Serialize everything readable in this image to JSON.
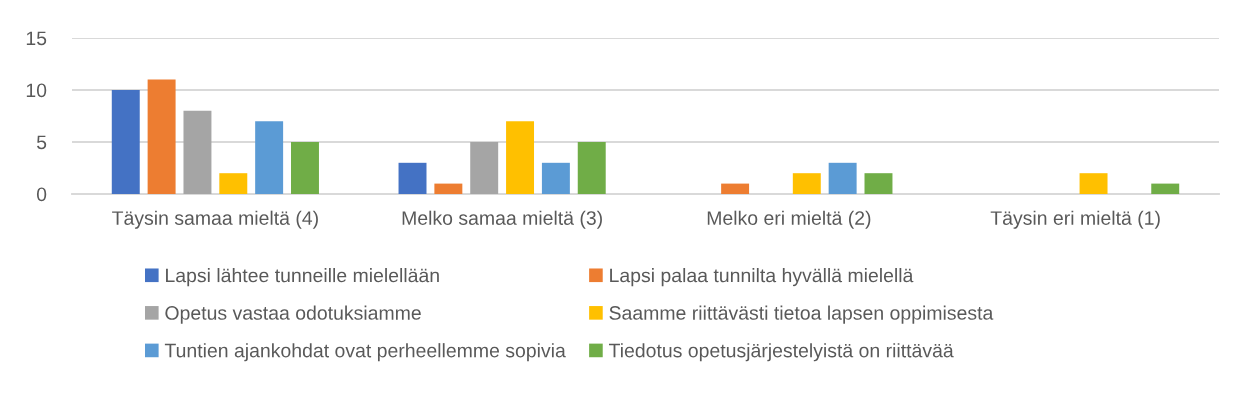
{
  "chart_data": {
    "type": "bar",
    "categories": [
      "Täysin samaa mieltä (4)",
      "Melko samaa mieltä (3)",
      "Melko eri mieltä (2)",
      "Täysin eri mieltä (1)"
    ],
    "series": [
      {
        "name": "Lapsi lähtee tunneille mielellään",
        "color": "#4472c4",
        "values": [
          10,
          3,
          null,
          null
        ]
      },
      {
        "name": "Lapsi palaa tunnilta hyvällä mielellä",
        "color": "#ed7d31",
        "values": [
          11,
          1,
          1,
          null
        ]
      },
      {
        "name": "Opetus vastaa odotuksiamme",
        "color": "#a5a5a5",
        "values": [
          8,
          5,
          null,
          null
        ]
      },
      {
        "name": "Saamme riittävästi tietoa lapsen oppimisesta",
        "color": "#ffc000",
        "values": [
          2,
          7,
          2,
          2
        ]
      },
      {
        "name": "Tuntien ajankohdat ovat perheellemme sopivia",
        "color": "#5b9bd5",
        "values": [
          7,
          3,
          3,
          null
        ]
      },
      {
        "name": "Tiedotus opetusjärjestelyistä on riittävää",
        "color": "#70ad47",
        "values": [
          5,
          5,
          2,
          1
        ]
      }
    ],
    "ylim": [
      0,
      15
    ],
    "yticks": [
      0,
      5,
      10,
      15
    ],
    "grid": "y",
    "legend": "bottom"
  }
}
